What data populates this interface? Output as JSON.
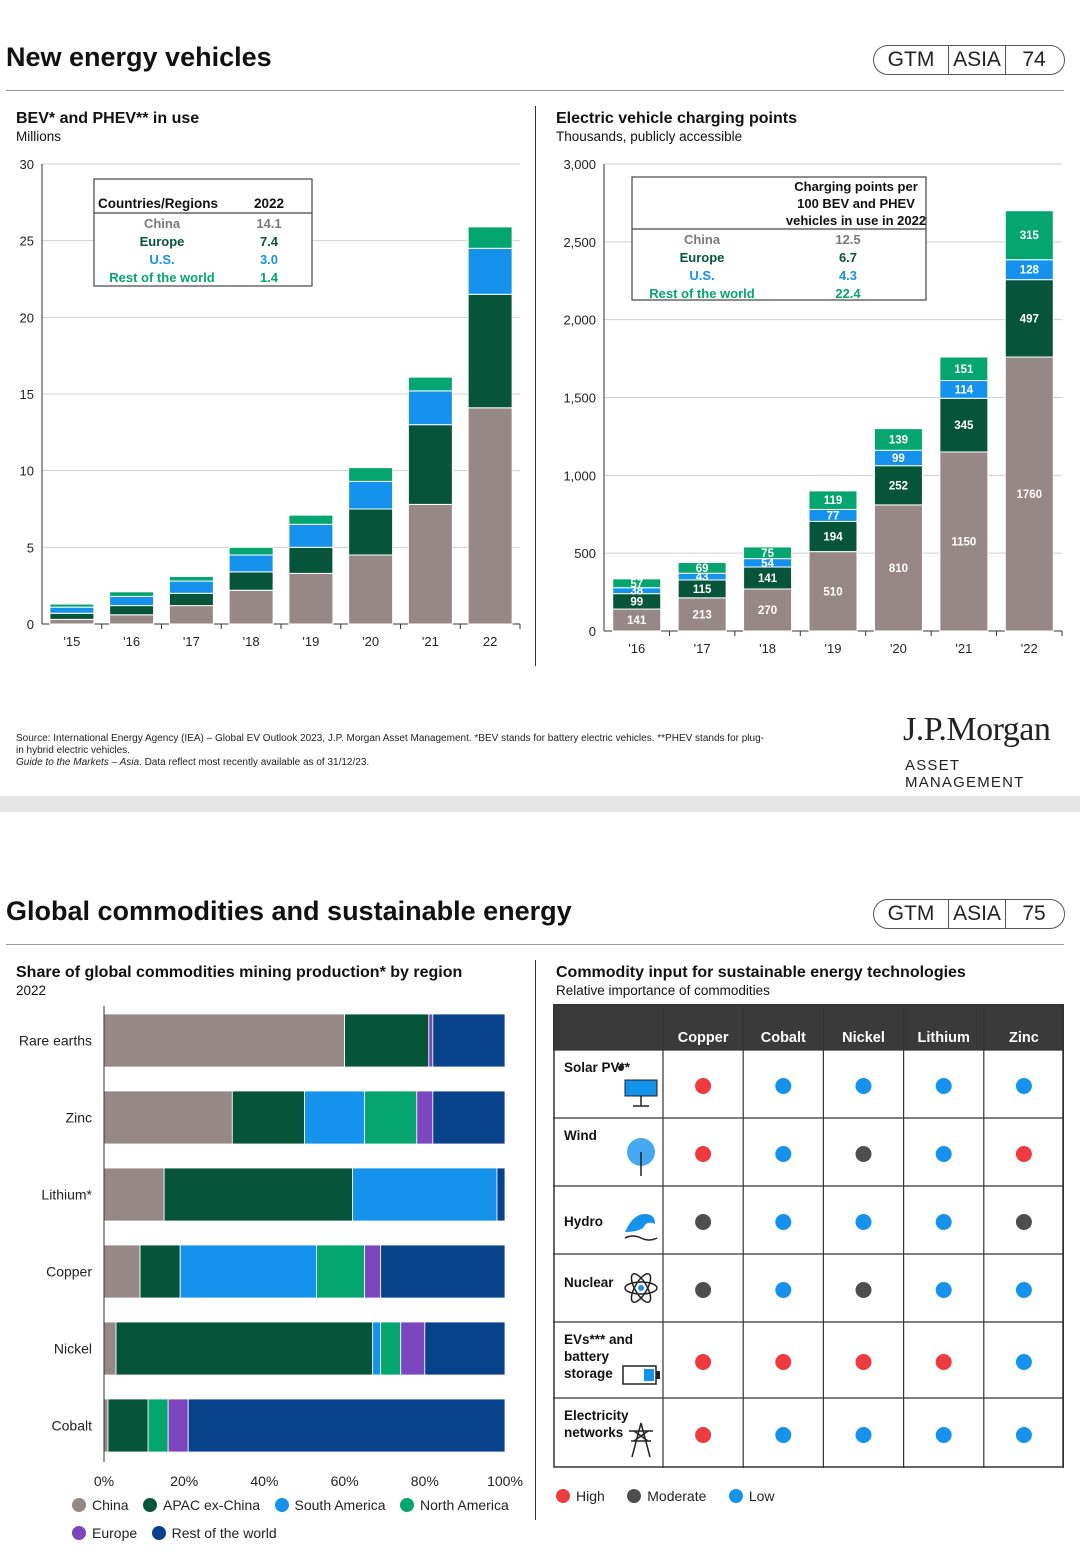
{
  "top": {
    "title": "New energy vehicles",
    "gtm": [
      "GTM",
      "ASIA",
      "74"
    ]
  },
  "bottom": {
    "title": "Global commodities and sustainable energy",
    "gtm": [
      "GTM",
      "ASIA",
      "75"
    ]
  },
  "footer": {
    "source_line1": "Source: International Energy Agency (IEA) – Global EV Outlook 2023, J.P. Morgan Asset Management. *BEV stands for battery electric vehicles. **PHEV stands for plug-",
    "source_line2": "in hybrid electric vehicles.",
    "guide_italic": "Guide to the Markets – Asia",
    "guide_rest": ". Data reflect most recently available as of 31/12/23.",
    "logo_top": "J.P.Morgan",
    "logo_bottom": "ASSET MANAGEMENT"
  },
  "colors": {
    "china": "#958886",
    "apac": "#06553a",
    "europe": "#06553a",
    "us": "#1593ec",
    "south_america": "#1593ec",
    "north_america": "#04a56f",
    "rest_green": "#04a56f",
    "europe_purple": "#7c47be",
    "rest_navy": "#07428a",
    "high": "#ef3a3f",
    "moderate": "#4e4e4e",
    "low": "#1593ec"
  },
  "chart_data": [
    {
      "type": "bar",
      "stacked": true,
      "title": "BEV* and PHEV** in use",
      "subtitle": "Millions",
      "categories": [
        "'15",
        "'16",
        "'17",
        "'18",
        "'19",
        "'20",
        "'21",
        "22"
      ],
      "ylim": [
        0,
        30
      ],
      "yticks": [
        "0",
        "5",
        "10",
        "15",
        "20",
        "25",
        "30"
      ],
      "series": [
        {
          "name": "China",
          "values": [
            0.3,
            0.6,
            1.2,
            2.2,
            3.3,
            4.5,
            7.8,
            14.1
          ]
        },
        {
          "name": "Europe",
          "values": [
            0.4,
            0.6,
            0.8,
            1.2,
            1.7,
            3.0,
            5.2,
            7.4
          ]
        },
        {
          "name": "U.S.",
          "values": [
            0.4,
            0.6,
            0.8,
            1.1,
            1.5,
            1.8,
            2.2,
            3.0
          ]
        },
        {
          "name": "Rest of the world",
          "values": [
            0.2,
            0.3,
            0.3,
            0.5,
            0.6,
            0.9,
            0.9,
            1.4
          ]
        }
      ],
      "inset_table": {
        "header": [
          "Countries/Regions",
          "2022"
        ],
        "rows": [
          [
            "China",
            "14.1"
          ],
          [
            "Europe",
            "7.4"
          ],
          [
            "U.S.",
            "3.0"
          ],
          [
            "Rest of the world",
            "1.4"
          ]
        ]
      }
    },
    {
      "type": "bar",
      "stacked": true,
      "title": "Electric vehicle charging points",
      "subtitle": "Thousands, publicly accessible",
      "categories": [
        "'16",
        "'17",
        "'18",
        "'19",
        "'20",
        "'21",
        "'22"
      ],
      "ylim": [
        0,
        3000
      ],
      "yticks": [
        "0",
        "500",
        "1,000",
        "1,500",
        "2,000",
        "2,500",
        "3,000"
      ],
      "series": [
        {
          "name": "China",
          "values": [
            141,
            213,
            270,
            510,
            810,
            1150,
            1760
          ]
        },
        {
          "name": "Europe",
          "values": [
            99,
            115,
            141,
            194,
            252,
            345,
            497
          ]
        },
        {
          "name": "U.S.",
          "values": [
            38,
            43,
            54,
            77,
            99,
            114,
            128
          ]
        },
        {
          "name": "Rest of the world",
          "values": [
            57,
            69,
            75,
            119,
            139,
            151,
            315
          ]
        }
      ],
      "inset_table": {
        "header": [
          "Charging points per",
          "100 BEV and PHEV",
          "vehicles in use in 2022"
        ],
        "rows": [
          [
            "China",
            "12.5"
          ],
          [
            "Europe",
            "6.7"
          ],
          [
            "U.S.",
            "4.3"
          ],
          [
            "Rest of the world",
            "22.4"
          ]
        ]
      }
    },
    {
      "type": "bar",
      "orientation": "horizontal",
      "stacked": true,
      "title": "Share of global commodities mining production* by region",
      "subtitle": "2022",
      "categories": [
        "Rare earths",
        "Zinc",
        "Lithium*",
        "Copper",
        "Nickel",
        "Cobalt"
      ],
      "xlim": [
        0,
        100
      ],
      "xticks": [
        "0%",
        "20%",
        "40%",
        "60%",
        "80%",
        "100%"
      ],
      "series": [
        {
          "name": "China",
          "values": [
            60,
            32,
            15,
            9,
            3,
            1
          ]
        },
        {
          "name": "APAC ex-China",
          "values": [
            21,
            18,
            47,
            10,
            64,
            10
          ]
        },
        {
          "name": "South America",
          "values": [
            0,
            15,
            36,
            34,
            2,
            0
          ]
        },
        {
          "name": "North America",
          "values": [
            0,
            13,
            0,
            12,
            5,
            5
          ]
        },
        {
          "name": "Europe",
          "values": [
            1,
            4,
            0,
            4,
            6,
            5
          ]
        },
        {
          "name": "Rest of the world",
          "values": [
            18,
            18,
            2,
            31,
            20,
            79
          ]
        }
      ]
    },
    {
      "type": "table",
      "title": "Commodity input for sustainable energy technologies",
      "subtitle": "Relative importance of commodities",
      "columns": [
        "Copper",
        "Cobalt",
        "Nickel",
        "Lithium",
        "Zinc"
      ],
      "rows": [
        {
          "label": "Solar PV**",
          "values": [
            "High",
            "Low",
            "Low",
            "Low",
            "Low"
          ]
        },
        {
          "label": "Wind",
          "values": [
            "High",
            "Low",
            "Moderate",
            "Low",
            "High"
          ]
        },
        {
          "label": "Hydro",
          "values": [
            "Moderate",
            "Low",
            "Low",
            "Low",
            "Moderate"
          ]
        },
        {
          "label": "Nuclear",
          "values": [
            "Moderate",
            "Low",
            "Moderate",
            "Low",
            "Low"
          ]
        },
        {
          "label": "EVs*** and battery storage",
          "values": [
            "High",
            "High",
            "High",
            "High",
            "Low"
          ]
        },
        {
          "label": "Electricity networks",
          "values": [
            "High",
            "Low",
            "Low",
            "Low",
            "Low"
          ]
        }
      ],
      "legend": [
        "High",
        "Moderate",
        "Low"
      ]
    }
  ]
}
